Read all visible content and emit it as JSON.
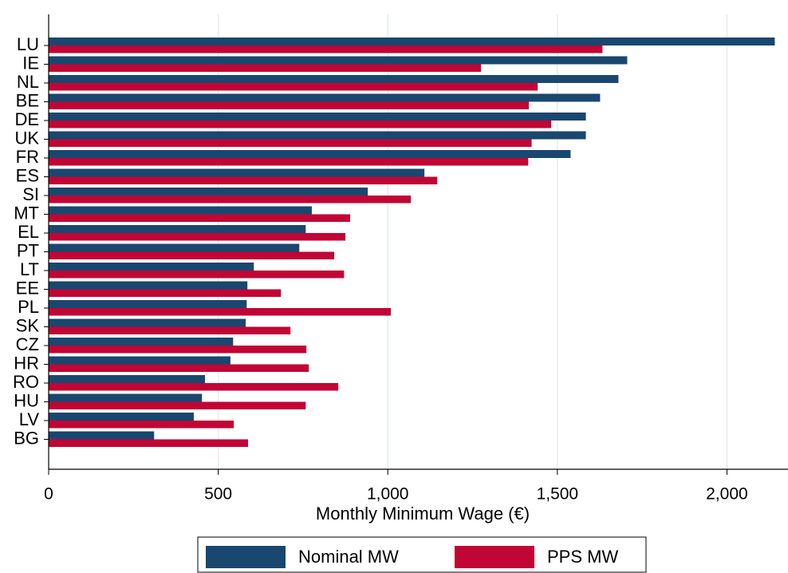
{
  "chart_data": {
    "type": "hbar",
    "x_label": "Monthly Minimum Wage (€)",
    "categories": [
      "LU",
      "IE",
      "NL",
      "BE",
      "DE",
      "UK",
      "FR",
      "ES",
      "SI",
      "MT",
      "EL",
      "PT",
      "LT",
      "EE",
      "PL",
      "SK",
      "CZ",
      "HR",
      "RO",
      "HU",
      "LV",
      "BG"
    ],
    "series": [
      {
        "name": "Nominal MW",
        "color": "#1a476f",
        "values": [
          2141,
          1706,
          1680,
          1626,
          1584,
          1584,
          1539,
          1108,
          941,
          776,
          758,
          739,
          605,
          586,
          584,
          581,
          544,
          536,
          461,
          452,
          428,
          311
        ]
      },
      {
        "name": "PPS MW",
        "color": "#c10534",
        "values": [
          1633,
          1275,
          1442,
          1416,
          1482,
          1424,
          1414,
          1146,
          1068,
          889,
          875,
          842,
          871,
          685,
          1009,
          713,
          760,
          767,
          854,
          758,
          546,
          588
        ]
      }
    ],
    "xlim": [
      0,
      2180
    ],
    "xticks": [
      0,
      500,
      {
        "value": 1000,
        "label": "1,000"
      },
      {
        "value": 1500,
        "label": "1,500"
      },
      {
        "value": 2000,
        "label": "2,000"
      }
    ],
    "grid": true,
    "legend": "bottom"
  }
}
